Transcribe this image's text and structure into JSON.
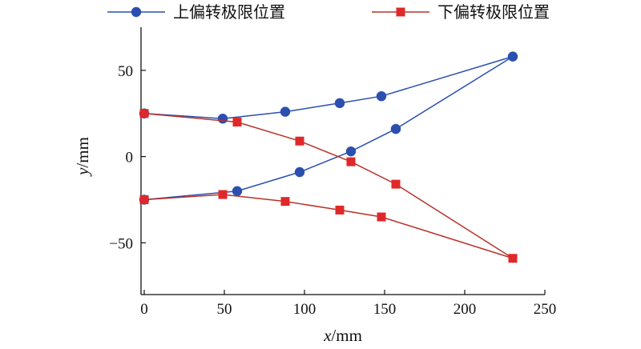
{
  "chart_data": {
    "type": "line",
    "xlabel_var": "x",
    "xlabel_unit": "/mm",
    "ylabel_var": "y",
    "ylabel_unit": "/mm",
    "xlim": [
      -2,
      250
    ],
    "ylim": [
      -80,
      75
    ],
    "xticks": [
      0,
      50,
      100,
      150,
      200,
      250
    ],
    "yticks": [
      -50,
      0,
      50
    ],
    "grid": false,
    "legend_position": "top",
    "series": [
      {
        "name": "上偏转极限位置",
        "color": "#2a4fb0",
        "marker": "circle",
        "points": [
          [
            0,
            25
          ],
          [
            49,
            22
          ],
          [
            88,
            26
          ],
          [
            122,
            31
          ],
          [
            148,
            35
          ],
          [
            230,
            58
          ],
          [
            157,
            16
          ],
          [
            129,
            3
          ],
          [
            97,
            -9
          ],
          [
            58,
            -20
          ],
          [
            0,
            -25
          ]
        ]
      },
      {
        "name": "下偏转极限位置",
        "color": "#e0282a",
        "line_color": "#b8322a",
        "marker": "square",
        "points": [
          [
            0,
            25
          ],
          [
            58,
            20
          ],
          [
            97,
            9
          ],
          [
            129,
            -3
          ],
          [
            157,
            -16
          ],
          [
            230,
            -59
          ],
          [
            148,
            -35
          ],
          [
            122,
            -31
          ],
          [
            88,
            -26
          ],
          [
            49,
            -22
          ],
          [
            0,
            -25
          ]
        ]
      }
    ]
  }
}
